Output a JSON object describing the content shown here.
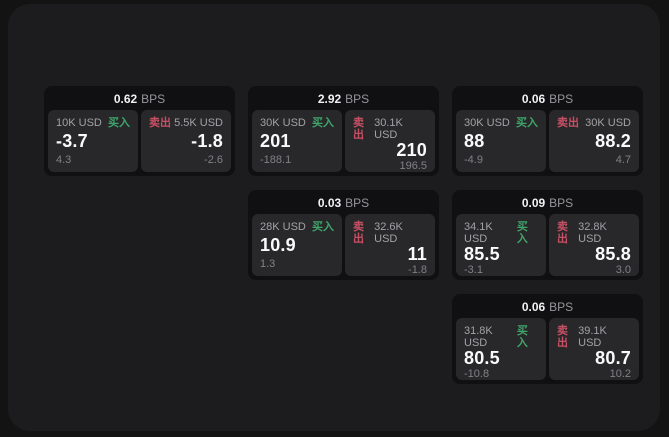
{
  "labels": {
    "bps_unit": "BPS",
    "buy": "买入",
    "sell": "卖出"
  },
  "colors": {
    "background": "#131314",
    "panel": "#1c1c1e",
    "card": "#101012",
    "subcard": "#28282a",
    "buy_green": "#3fa56b",
    "sell_red": "#c75064",
    "text_primary": "#fafafa",
    "text_secondary": "#a2a2a6",
    "text_muted": "#818186"
  },
  "cards": [
    {
      "row": 1,
      "col": 1,
      "bps": "0.62",
      "buy": {
        "size": "10K USD",
        "value": "-3.7",
        "delta": "4.3"
      },
      "sell": {
        "size": "5.5K USD",
        "value": "-1.8",
        "delta": "-2.6"
      }
    },
    {
      "row": 1,
      "col": 2,
      "bps": "2.92",
      "buy": {
        "size": "30K USD",
        "value": "201",
        "delta": "-188.1"
      },
      "sell": {
        "size": "30.1K USD",
        "value": "210",
        "delta": "196.5"
      }
    },
    {
      "row": 1,
      "col": 3,
      "bps": "0.06",
      "buy": {
        "size": "30K USD",
        "value": "88",
        "delta": "-4.9"
      },
      "sell": {
        "size": "30K USD",
        "value": "88.2",
        "delta": "4.7"
      }
    },
    {
      "row": 2,
      "col": 2,
      "bps": "0.03",
      "buy": {
        "size": "28K USD",
        "value": "10.9",
        "delta": "1.3"
      },
      "sell": {
        "size": "32.6K USD",
        "value": "11",
        "delta": "-1.8"
      }
    },
    {
      "row": 2,
      "col": 3,
      "bps": "0.09",
      "buy": {
        "size": "34.1K USD",
        "value": "85.5",
        "delta": "-3.1"
      },
      "sell": {
        "size": "32.8K USD",
        "value": "85.8",
        "delta": "3.0"
      }
    },
    {
      "row": 3,
      "col": 3,
      "bps": "0.06",
      "buy": {
        "size": "31.8K USD",
        "value": "80.5",
        "delta": "-10.8"
      },
      "sell": {
        "size": "39.1K USD",
        "value": "80.7",
        "delta": "10.2"
      }
    }
  ]
}
